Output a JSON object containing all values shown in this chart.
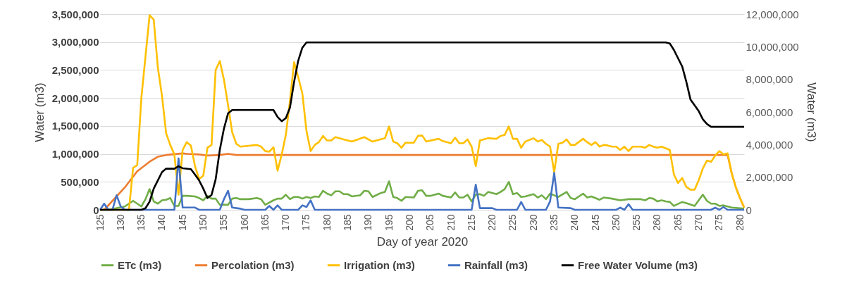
{
  "chart_data": {
    "type": "line",
    "xlabel": "Day of year 2020",
    "ylabel": "Water (m3)",
    "y2label": "Water (m3)",
    "xlim": [
      125,
      281
    ],
    "xticks": [
      125,
      130,
      135,
      140,
      145,
      150,
      155,
      160,
      165,
      170,
      175,
      180,
      185,
      190,
      195,
      200,
      205,
      210,
      215,
      220,
      225,
      230,
      235,
      240,
      245,
      250,
      255,
      260,
      265,
      270,
      275,
      280
    ],
    "ylim": [
      0,
      3500000
    ],
    "yticks": [
      0,
      {
        "value": 500000,
        "label": "500,000"
      },
      {
        "value": 1000000,
        "label": "1,000,000"
      },
      {
        "value": 1500000,
        "label": "1,500,000"
      },
      {
        "value": 2000000,
        "label": "2,000,000"
      },
      {
        "value": 2500000,
        "label": "2,500,000"
      },
      {
        "value": 3000000,
        "label": "3,000,000"
      },
      {
        "value": 3500000,
        "label": "3,500,000"
      }
    ],
    "y2lim": [
      0,
      12000000
    ],
    "y2ticks": [
      0,
      {
        "value": 2000000,
        "label": "2,000,000"
      },
      {
        "value": 4000000,
        "label": "4,000,000"
      },
      {
        "value": 6000000,
        "label": "6,000,000"
      },
      {
        "value": 8000000,
        "label": "8,000,000"
      },
      {
        "value": 10000000,
        "label": "10,000,000"
      },
      {
        "value": 12000000,
        "label": "12,000,000"
      }
    ],
    "grid": "y",
    "legend": "bottom",
    "series": [
      {
        "name": "ETc (m3)",
        "color": "#70ad47",
        "x": [
          125,
          127,
          131,
          133,
          134,
          135,
          136,
          137,
          138,
          139,
          140,
          141,
          142,
          143,
          144,
          145,
          146,
          148,
          149,
          150,
          151,
          152,
          153,
          154,
          156,
          157,
          158,
          159,
          161,
          163,
          164,
          165,
          167,
          168,
          169,
          170,
          171,
          172,
          173,
          174,
          175,
          176,
          177,
          178,
          179,
          180,
          181,
          182,
          183,
          184,
          185,
          186,
          188,
          189,
          190,
          191,
          193,
          194,
          195,
          196,
          197,
          198,
          199,
          201,
          202,
          203,
          204,
          205,
          207,
          208,
          210,
          211,
          212,
          213,
          214,
          215,
          216,
          217,
          218,
          219,
          221,
          222,
          223,
          224,
          225,
          226,
          227,
          228,
          230,
          231,
          232,
          233,
          234,
          235,
          236,
          238,
          239,
          240,
          242,
          243,
          244,
          246,
          247,
          249,
          251,
          253,
          256,
          257,
          258,
          259,
          260,
          261,
          262,
          263,
          264,
          266,
          267,
          269,
          271,
          272,
          273,
          274,
          275,
          276,
          277,
          278,
          281
        ],
        "values": [
          0,
          0,
          60000,
          160000,
          110000,
          60000,
          190000,
          370000,
          150000,
          110000,
          170000,
          180000,
          210000,
          70000,
          70000,
          250000,
          250000,
          240000,
          210000,
          170000,
          250000,
          200000,
          200000,
          90000,
          90000,
          200000,
          210000,
          190000,
          190000,
          210000,
          190000,
          90000,
          170000,
          200000,
          200000,
          270000,
          190000,
          230000,
          230000,
          200000,
          230000,
          210000,
          240000,
          230000,
          340000,
          290000,
          260000,
          330000,
          330000,
          280000,
          280000,
          240000,
          260000,
          340000,
          330000,
          230000,
          300000,
          320000,
          510000,
          230000,
          210000,
          160000,
          230000,
          220000,
          340000,
          350000,
          250000,
          250000,
          290000,
          250000,
          220000,
          310000,
          220000,
          220000,
          270000,
          150000,
          270000,
          280000,
          250000,
          320000,
          280000,
          320000,
          370000,
          500000,
          280000,
          300000,
          230000,
          240000,
          280000,
          220000,
          260000,
          190000,
          290000,
          260000,
          230000,
          320000,
          210000,
          190000,
          290000,
          220000,
          240000,
          180000,
          220000,
          200000,
          170000,
          190000,
          190000,
          170000,
          210000,
          200000,
          150000,
          170000,
          150000,
          140000,
          70000,
          140000,
          120000,
          70000,
          270000,
          160000,
          110000,
          110000,
          70000,
          80000,
          60000,
          40000,
          20000
        ]
      },
      {
        "name": "Percolation (m3)",
        "color": "#ed7d31",
        "x": [
          125,
          126,
          131,
          134,
          137,
          139,
          141,
          145,
          146,
          149,
          151,
          154,
          156,
          158,
          277,
          278,
          279,
          280,
          281
        ],
        "values": [
          0,
          0,
          400000,
          690000,
          860000,
          950000,
          980000,
          1010000,
          1000000,
          990000,
          970000,
          980000,
          1000000,
          980000,
          980000,
          650000,
          400000,
          210000,
          40000
        ]
      },
      {
        "name": "Irrigation (m3)",
        "color": "#ffc000",
        "x": [
          125,
          132,
          133,
          134,
          135,
          137,
          138,
          139,
          140,
          141,
          142,
          143,
          144,
          145,
          146,
          147,
          148,
          149,
          150,
          151,
          152,
          153,
          154,
          155,
          156,
          157,
          158,
          159,
          163,
          164,
          165,
          166,
          167,
          168,
          169,
          170,
          171,
          172,
          173,
          174,
          175,
          176,
          177,
          178,
          179,
          180,
          181,
          182,
          184,
          186,
          189,
          191,
          194,
          195,
          196,
          197,
          198,
          199,
          201,
          202,
          203,
          204,
          207,
          208,
          210,
          211,
          212,
          213,
          214,
          215,
          216,
          217,
          219,
          221,
          222,
          223,
          224,
          225,
          226,
          227,
          228,
          230,
          231,
          232,
          233,
          234,
          235,
          236,
          237,
          238,
          239,
          240,
          242,
          243,
          244,
          245,
          246,
          247,
          248,
          249,
          250,
          251,
          252,
          253,
          254,
          256,
          257,
          258,
          259,
          260,
          261,
          263,
          264,
          265,
          266,
          267,
          268,
          269,
          270,
          271,
          272,
          273,
          274,
          275,
          276,
          277,
          278,
          279,
          280,
          281
        ],
        "values": [
          0,
          0,
          750000,
          800000,
          2000000,
          3480000,
          3400000,
          2540000,
          2040000,
          1370000,
          1160000,
          990000,
          270000,
          1070000,
          1210000,
          1150000,
          780000,
          550000,
          610000,
          1110000,
          1160000,
          2500000,
          2660000,
          2330000,
          1870000,
          1390000,
          1180000,
          1130000,
          1160000,
          1130000,
          1050000,
          1040000,
          1120000,
          700000,
          990000,
          1340000,
          1950000,
          2640000,
          2370000,
          2080000,
          1410000,
          1050000,
          1160000,
          1210000,
          1320000,
          1240000,
          1240000,
          1300000,
          1260000,
          1220000,
          1300000,
          1220000,
          1280000,
          1490000,
          1220000,
          1190000,
          1110000,
          1200000,
          1200000,
          1320000,
          1330000,
          1220000,
          1270000,
          1230000,
          1190000,
          1290000,
          1190000,
          1190000,
          1260000,
          1130000,
          780000,
          1240000,
          1280000,
          1270000,
          1320000,
          1340000,
          1490000,
          1270000,
          1270000,
          1110000,
          1220000,
          1280000,
          1220000,
          1250000,
          1180000,
          1130000,
          670000,
          1180000,
          1200000,
          1260000,
          1160000,
          1160000,
          1270000,
          1210000,
          1160000,
          1210000,
          1130000,
          1160000,
          1150000,
          1130000,
          1130000,
          1070000,
          1130000,
          1050000,
          1130000,
          1130000,
          1110000,
          1160000,
          1130000,
          1110000,
          1130000,
          1070000,
          630000,
          480000,
          570000,
          410000,
          360000,
          360000,
          530000,
          740000,
          880000,
          860000,
          970000,
          1050000,
          990000,
          1010000,
          650000,
          400000,
          210000,
          40000
        ]
      },
      {
        "name": "Rainfall (m3)",
        "color": "#4472c4",
        "x": [
          125,
          126,
          127,
          128,
          129,
          130,
          131,
          143,
          144,
          145,
          148,
          149,
          154,
          155,
          156,
          157,
          159,
          160,
          165,
          166,
          167,
          168,
          169,
          173,
          174,
          175,
          176,
          177,
          215,
          216,
          217,
          220,
          221,
          226,
          227,
          228,
          233,
          234,
          235,
          236,
          239,
          240,
          250,
          251,
          252,
          253,
          254,
          273,
          274,
          275,
          276,
          277,
          281
        ],
        "values": [
          0,
          110000,
          0,
          0,
          260000,
          60000,
          0,
          0,
          920000,
          40000,
          40000,
          0,
          0,
          190000,
          340000,
          40000,
          20000,
          0,
          0,
          70000,
          0,
          80000,
          0,
          0,
          80000,
          50000,
          170000,
          0,
          0,
          450000,
          30000,
          30000,
          0,
          0,
          140000,
          0,
          0,
          150000,
          660000,
          40000,
          30000,
          0,
          0,
          40000,
          0,
          100000,
          0,
          0,
          40000,
          0,
          50000,
          0,
          0
        ]
      },
      {
        "name": "Free Water Volume (m3)",
        "color": "#000000",
        "axis": "y2",
        "x": [
          125,
          135,
          136,
          137,
          138,
          140,
          141,
          143,
          144,
          145,
          147,
          148,
          149,
          150,
          151,
          152,
          153,
          154,
          155,
          156,
          157,
          167,
          168,
          169,
          170,
          171,
          172,
          173,
          174,
          175,
          262,
          263,
          264,
          265,
          266,
          267,
          268,
          270,
          271,
          272,
          273,
          281
        ],
        "values": [
          0,
          0,
          100000,
          500000,
          1300000,
          2310000,
          2520000,
          2520000,
          2670000,
          2550000,
          2490000,
          2160000,
          1800000,
          1300000,
          720000,
          910000,
          1870000,
          3670000,
          4970000,
          5910000,
          6120000,
          6120000,
          5690000,
          5430000,
          5620000,
          6270000,
          7850000,
          9150000,
          9940000,
          10260000,
          10260000,
          10200000,
          9800000,
          9290000,
          8790000,
          7850000,
          6770000,
          6050000,
          5550000,
          5260000,
          5090000,
          5090000
        ]
      }
    ]
  }
}
